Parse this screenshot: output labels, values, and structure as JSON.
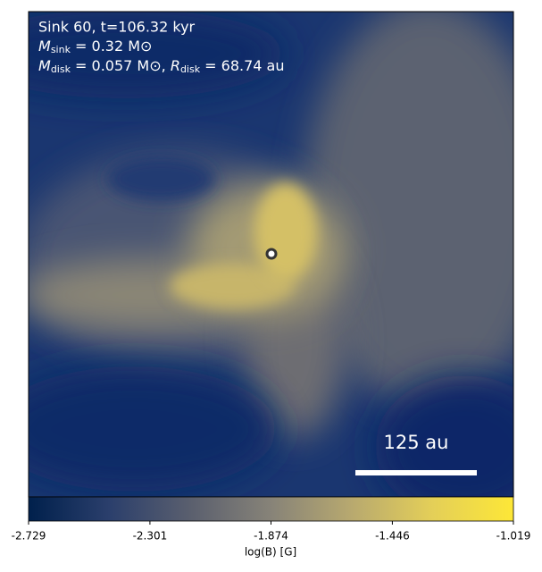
{
  "chart_data": {
    "type": "image",
    "annotation": {
      "line1": "Sink 60, t=106.32 kyr",
      "line2": {
        "symbol": "M",
        "sub": "sink",
        "tail": " = 0.32 M⊙"
      },
      "line3": {
        "symbol": "M",
        "sub": "disk",
        "tail": " = 0.057 M⊙, ",
        "symbol2": "R",
        "sub2": "disk",
        "tail2": " = 68.74 au"
      }
    },
    "scale_bar": "125 au",
    "colorbar": {
      "label": "log(B) [G]",
      "lim": [
        -2.729,
        -1.019
      ],
      "ticks": [
        -2.729,
        -2.301,
        -1.874,
        -1.446,
        -1.019
      ],
      "colormap": [
        "#00204c",
        "#2b3f6c",
        "#5a5f6e",
        "#878378",
        "#b8a96f",
        "#e4cf58",
        "#fde737"
      ]
    }
  }
}
